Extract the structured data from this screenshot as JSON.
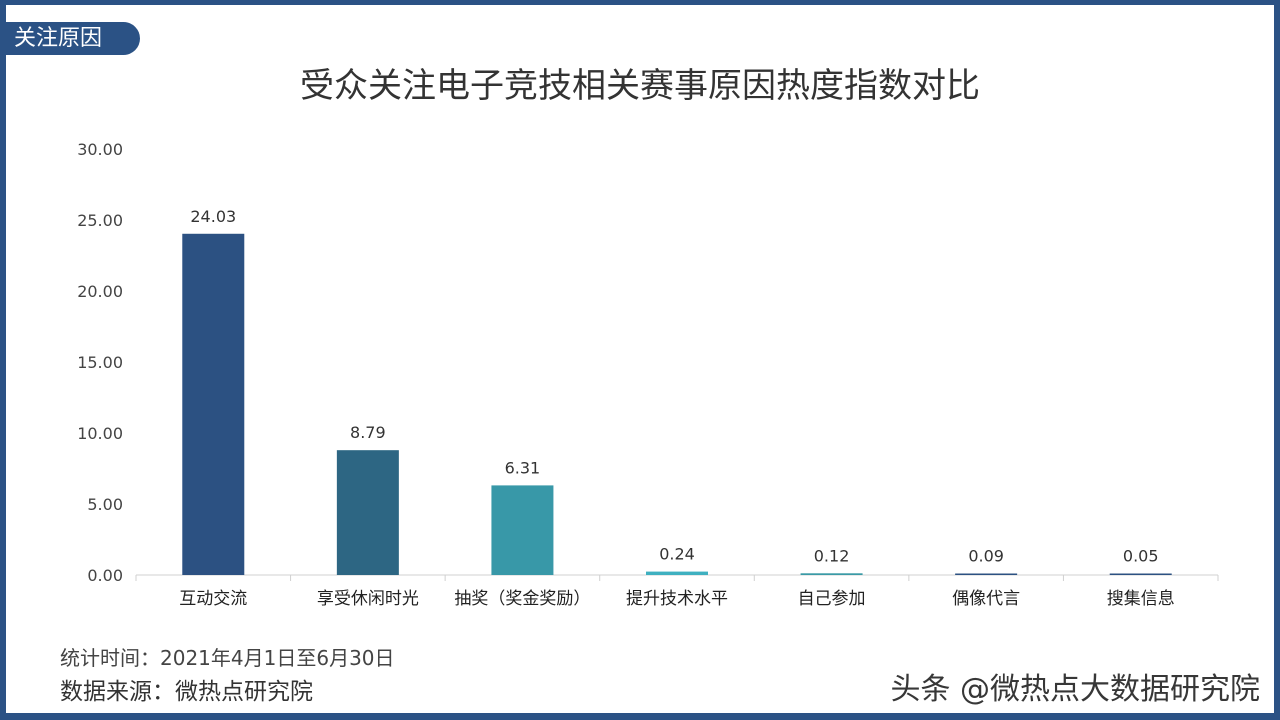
{
  "tag": "关注原因",
  "chart_data": {
    "type": "bar",
    "title": "受众关注电子竞技相关赛事原因热度指数对比",
    "xlabel": "",
    "ylabel": "",
    "ylim": [
      0,
      30
    ],
    "yticks": [
      "0.00",
      "5.00",
      "10.00",
      "15.00",
      "20.00",
      "25.00",
      "30.00"
    ],
    "categories": [
      "互动交流",
      "享受休闲时光",
      "抽奖（奖金奖励）",
      "提升技术水平",
      "自己参加",
      "偶像代言",
      "搜集信息"
    ],
    "values": [
      24.03,
      8.79,
      6.31,
      0.24,
      0.12,
      0.09,
      0.05
    ],
    "value_labels": [
      "24.03",
      "8.79",
      "6.31",
      "0.24",
      "0.12",
      "0.09",
      "0.05"
    ],
    "colors": [
      "#2c5182",
      "#2d6683",
      "#3898a8",
      "#3fb0c0",
      "#3a9aa6",
      "#2c5182",
      "#2c5182"
    ],
    "grid": false
  },
  "footer": {
    "period": "统计时间：2021年4月1日至6月30日",
    "source": "数据来源：微热点研究院"
  },
  "watermark": "头条 @微热点大数据研究院"
}
